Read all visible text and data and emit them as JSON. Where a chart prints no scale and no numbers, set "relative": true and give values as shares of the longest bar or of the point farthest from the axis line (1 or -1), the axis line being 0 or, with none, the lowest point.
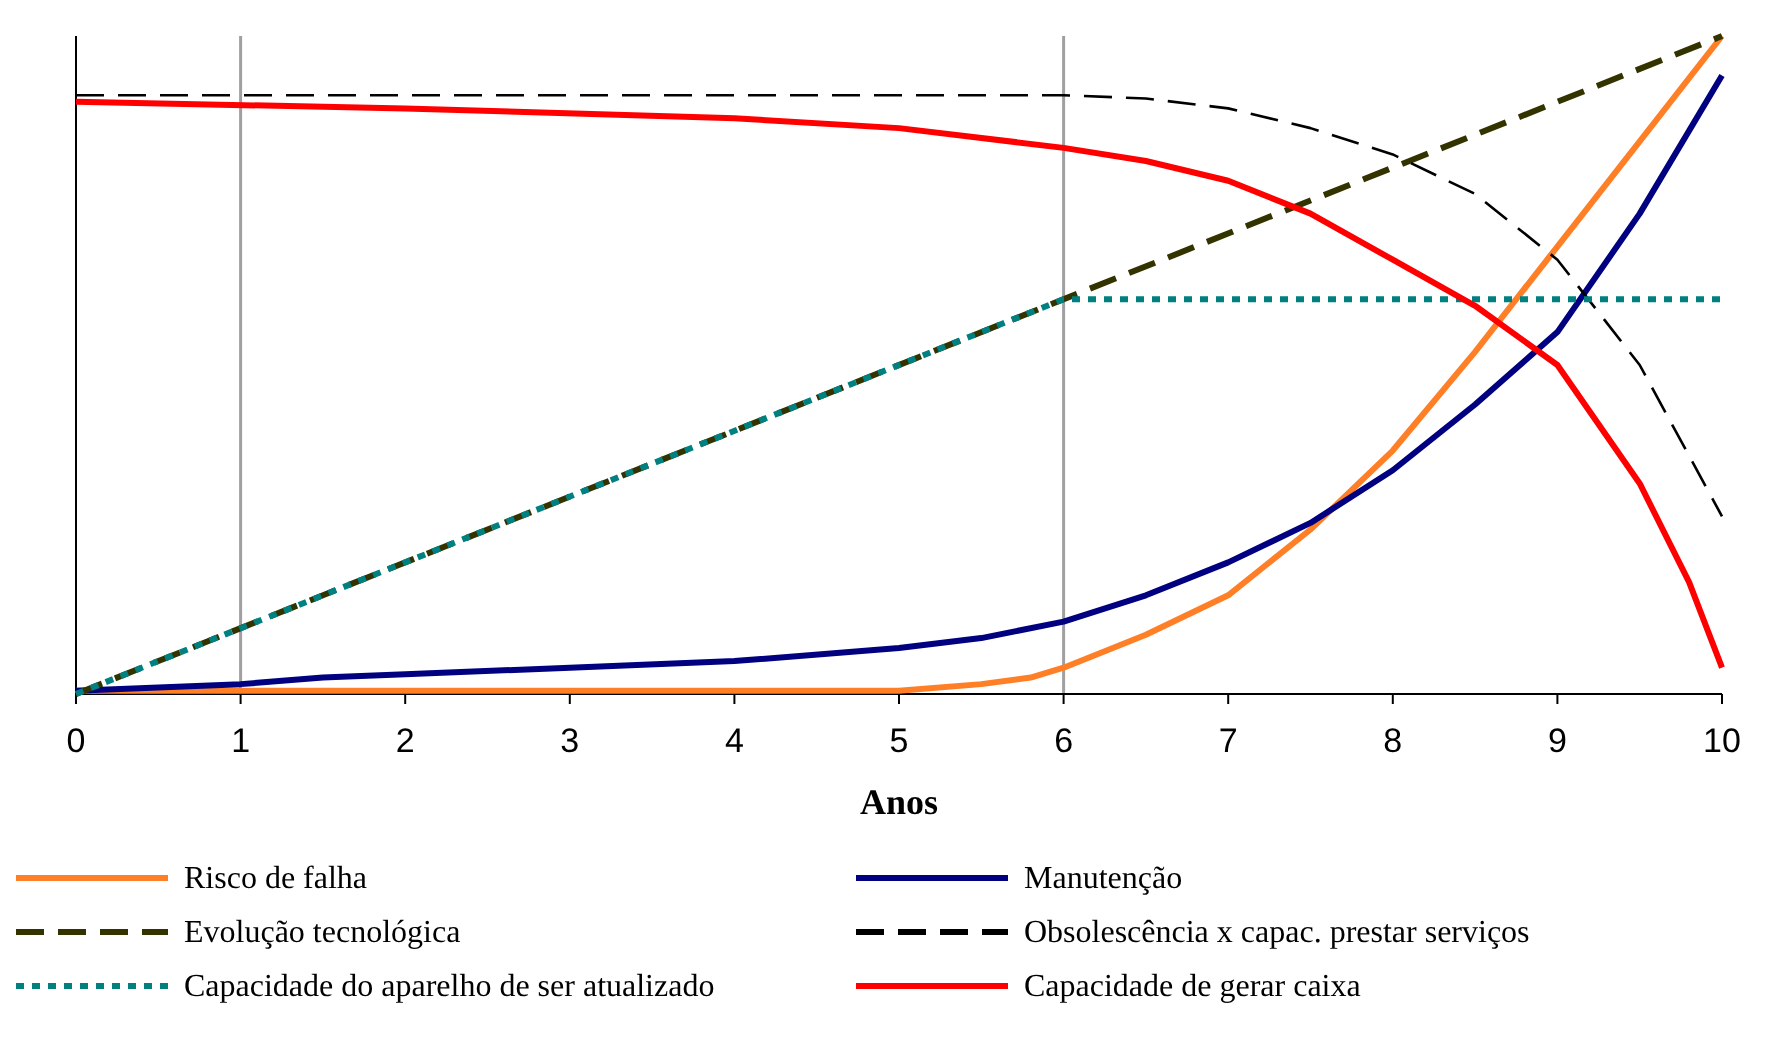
{
  "chart_data": {
    "type": "line",
    "relative": true,
    "xlabel": "Anos",
    "xlim": [
      0,
      10
    ],
    "xticks": [
      0,
      1,
      2,
      3,
      4,
      5,
      6,
      7,
      8,
      9,
      10
    ],
    "grid": false,
    "legend": "bottom",
    "ref_lines": [
      {
        "axis": "x",
        "value": 1,
        "color": "#a0a0a0"
      },
      {
        "axis": "x",
        "value": 6,
        "color": "#a0a0a0"
      }
    ],
    "series": [
      {
        "name": "Risco de falha",
        "color": "#ff7f27",
        "line_style": "solid",
        "x": [
          0,
          1,
          2,
          3,
          4,
          5,
          5.5,
          5.8,
          6,
          6.5,
          7,
          7.5,
          8,
          8.5,
          9,
          9.5,
          10
        ],
        "values": [
          0.005,
          0.005,
          0.005,
          0.005,
          0.005,
          0.005,
          0.015,
          0.025,
          0.04,
          0.09,
          0.15,
          0.25,
          0.37,
          0.52,
          0.68,
          0.84,
          1.0
        ]
      },
      {
        "name": "Manutenção",
        "color": "#000080",
        "line_style": "solid",
        "x": [
          0,
          1,
          1.5,
          2,
          3,
          4,
          5,
          5.5,
          6,
          6.5,
          7,
          7.5,
          8,
          8.5,
          9,
          9.5,
          10
        ],
        "values": [
          0.005,
          0.015,
          0.025,
          0.03,
          0.04,
          0.05,
          0.07,
          0.085,
          0.11,
          0.15,
          0.2,
          0.26,
          0.34,
          0.44,
          0.55,
          0.73,
          0.94
        ]
      },
      {
        "name": "Evolução tecnológica",
        "color": "#333300",
        "line_style": "dashed",
        "x": [
          0,
          10
        ],
        "values": [
          0,
          1.0
        ]
      },
      {
        "name": "Obsolescência x capac. prestar serviços",
        "color": "#000000",
        "line_style": "dashed",
        "x": [
          0,
          6,
          6.5,
          7,
          7.5,
          8,
          8.5,
          9,
          9.5,
          10
        ],
        "values": [
          0.91,
          0.91,
          0.905,
          0.89,
          0.86,
          0.82,
          0.76,
          0.66,
          0.5,
          0.27
        ]
      },
      {
        "name": "Capacidade do aparelho de ser atualizado",
        "color": "#008080",
        "line_style": "dotted",
        "x": [
          0,
          6,
          10
        ],
        "values": [
          0,
          0.6,
          0.6
        ]
      },
      {
        "name": "Capacidade de gerar caixa",
        "color": "#ff0000",
        "line_style": "solid",
        "x": [
          0,
          2,
          4,
          5,
          6,
          6.5,
          7,
          7.5,
          8,
          8.5,
          9,
          9.5,
          9.8,
          10
        ],
        "values": [
          0.9,
          0.89,
          0.875,
          0.86,
          0.83,
          0.81,
          0.78,
          0.73,
          0.66,
          0.59,
          0.5,
          0.32,
          0.17,
          0.04
        ]
      }
    ]
  }
}
